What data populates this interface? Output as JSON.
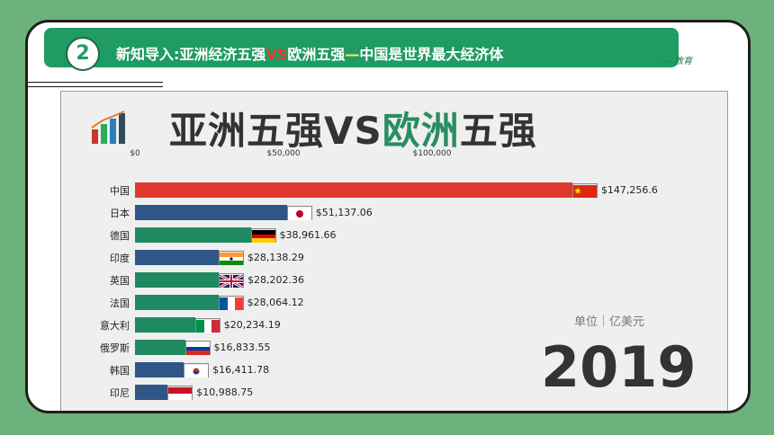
{
  "header": {
    "number": "2",
    "text_prefix": "新知导入:亚洲经济五强",
    "text_vs": "VS",
    "text_mid": "欧洲五强",
    "text_dash": "—",
    "text_suffix": "中国是世界最大经济体"
  },
  "brand": "— 教育",
  "slide": {
    "title_part1": "亚洲五强VS",
    "title_part2": "欧洲",
    "title_part3": "五强",
    "unit": "单位｜亿美元",
    "year": "2019"
  },
  "colors": {
    "china": "#e03a2f",
    "asia": "#2f5687",
    "europe": "#1f8a62"
  },
  "chart_data": {
    "type": "bar",
    "orientation": "horizontal",
    "xlim": [
      0,
      150000
    ],
    "x_ticks": [
      "$0",
      "$50,000",
      "$100,000"
    ],
    "categories": [
      "中国",
      "日本",
      "德国",
      "印度",
      "英国",
      "法国",
      "意大利",
      "俄罗斯",
      "韩国",
      "印尼"
    ],
    "values": [
      147256.6,
      51137.06,
      38961.66,
      28138.29,
      28202.36,
      28064.12,
      20234.19,
      16833.55,
      16411.78,
      10988.75
    ],
    "value_labels": [
      "$147,256.6",
      "$51,137.06",
      "$38,961.66",
      "$28,138.29",
      "$28,202.36",
      "$28,064.12",
      "$20,234.19",
      "$16,833.55",
      "$16,411.78",
      "$10,988.75"
    ],
    "groups": [
      "china",
      "asia",
      "europe",
      "asia",
      "europe",
      "europe",
      "europe",
      "europe",
      "asia",
      "asia"
    ],
    "flags": [
      "china",
      "japan",
      "germany",
      "india",
      "uk",
      "france",
      "italy",
      "russia",
      "korea",
      "indonesia"
    ]
  }
}
